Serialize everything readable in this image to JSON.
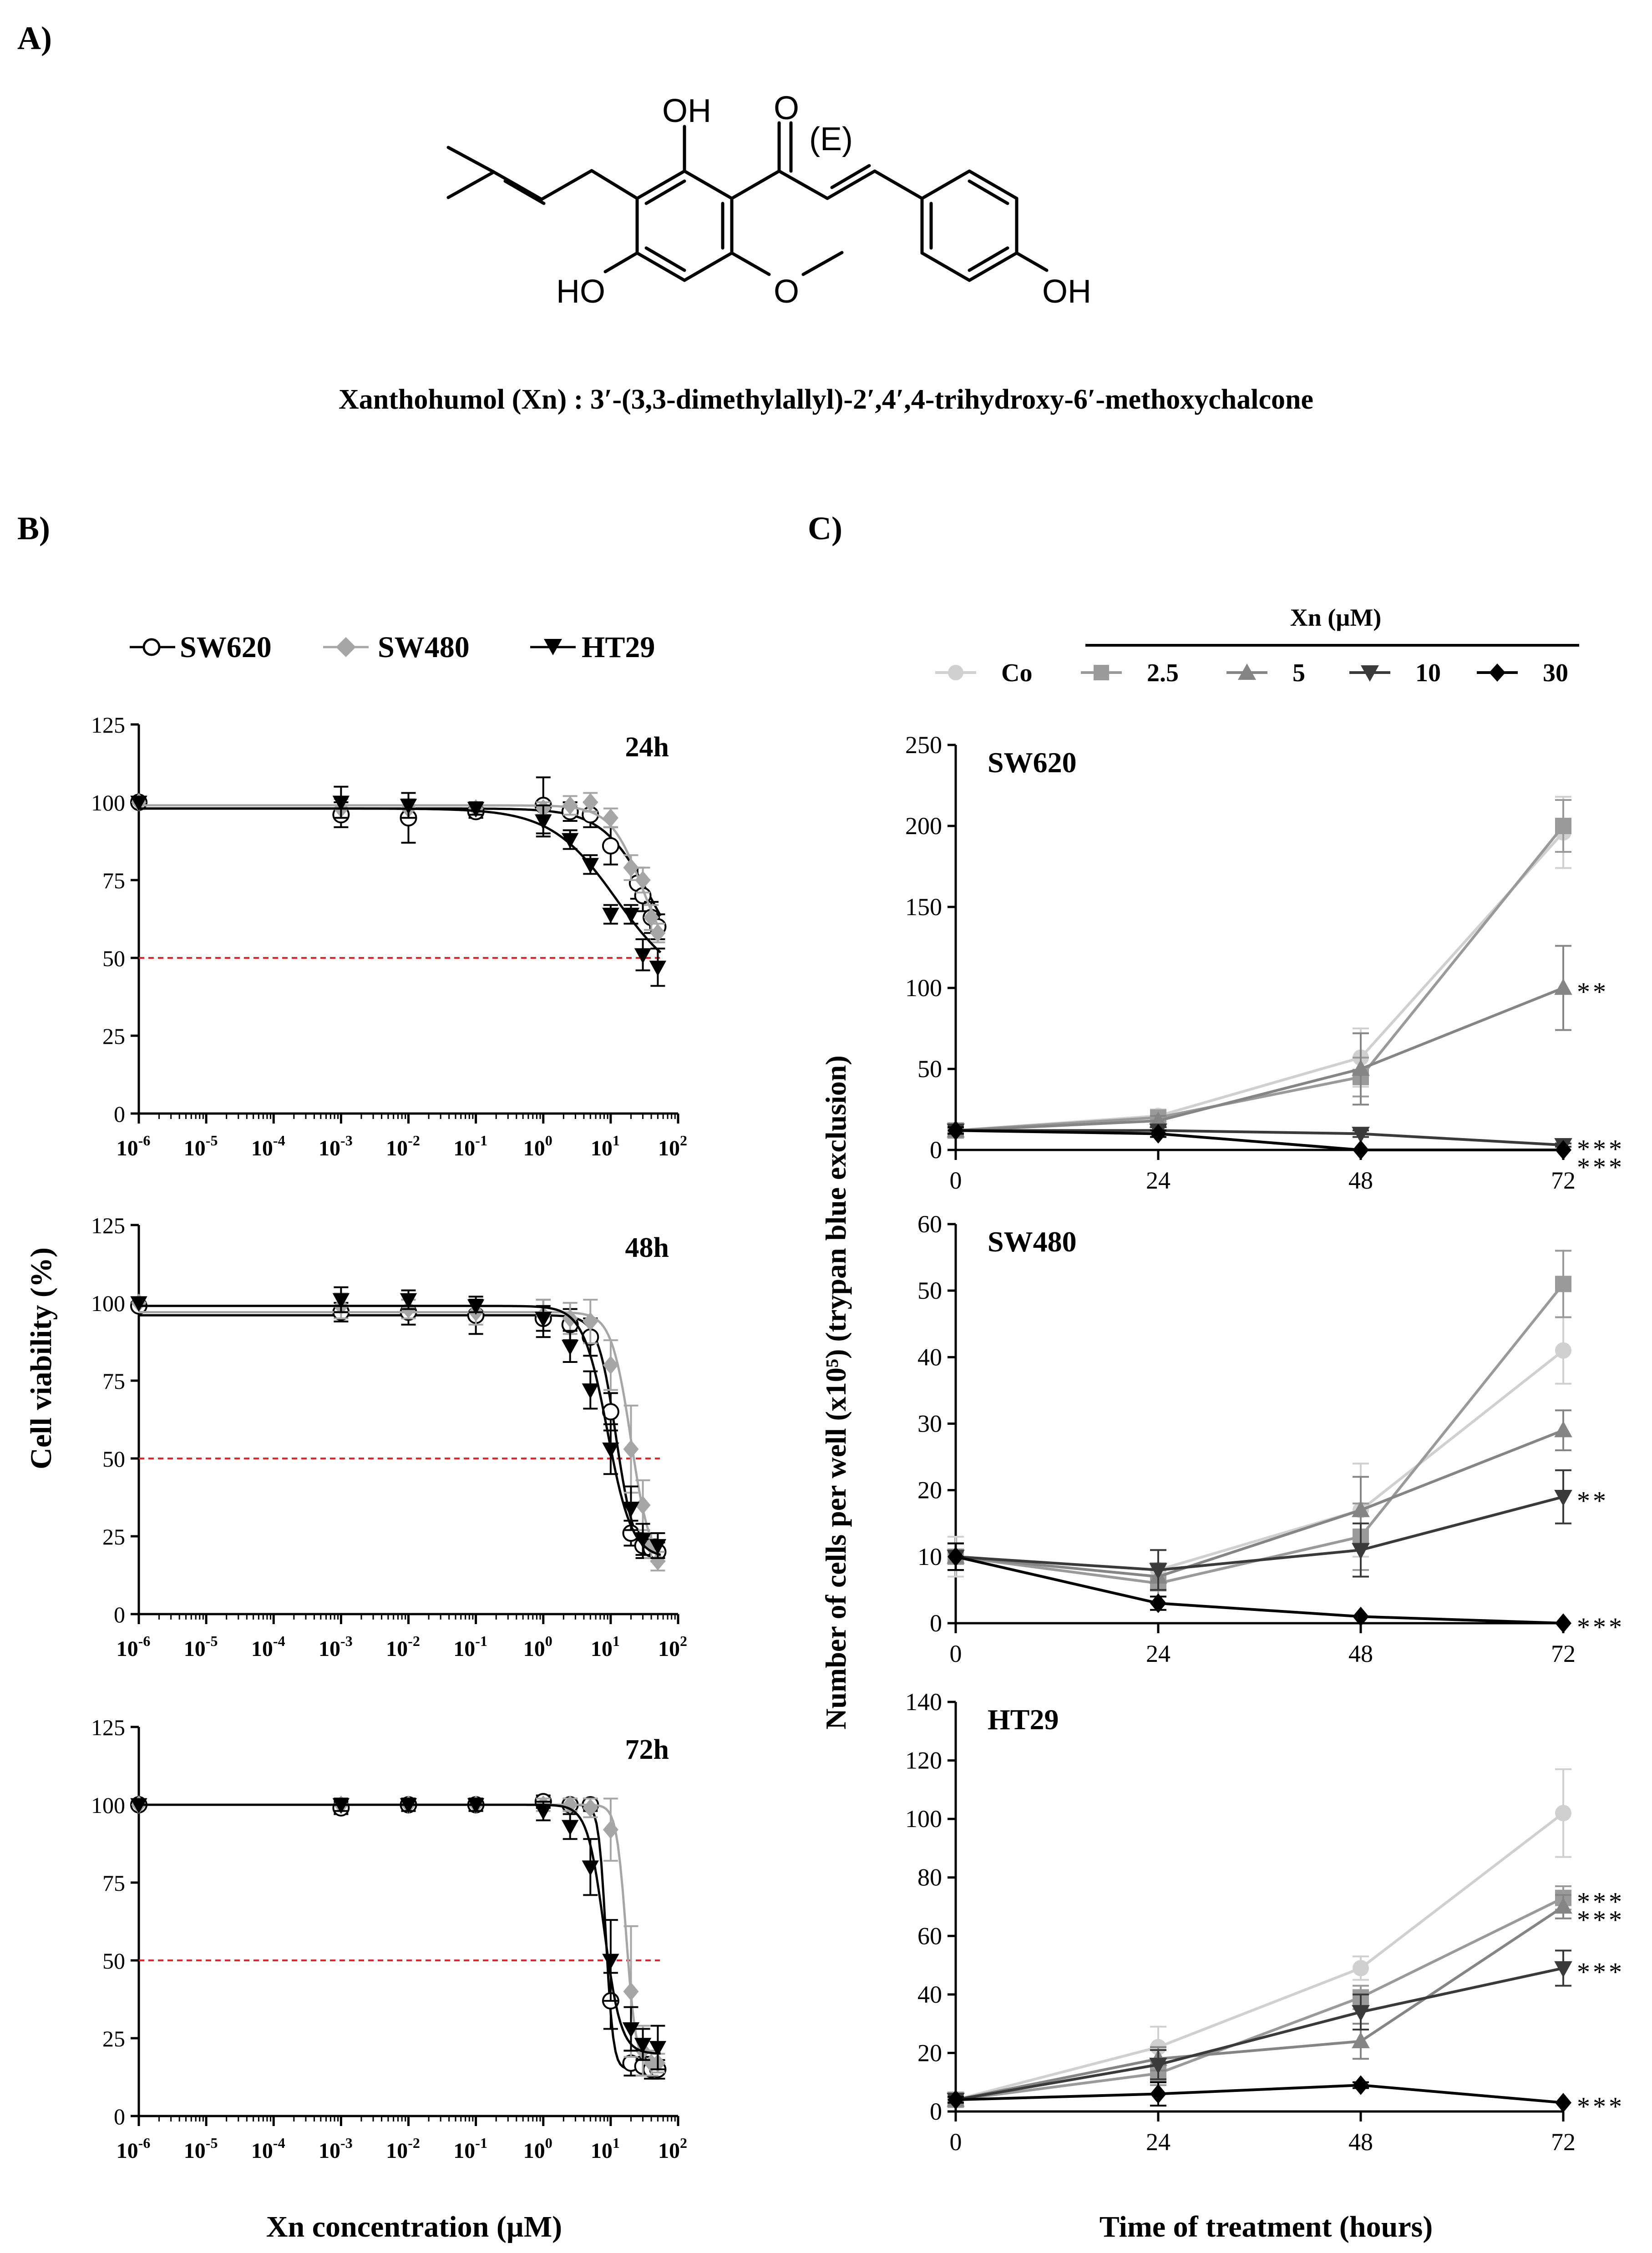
{
  "panels": {
    "a": {
      "label": "A)"
    },
    "b": {
      "label": "B)"
    },
    "c": {
      "label": "C)"
    }
  },
  "molecule": {
    "atoms": {
      "oh_top": "OH",
      "o_keto": "O",
      "stereo": "(E)",
      "ho_left": "HO",
      "o_methoxy": "O",
      "oh_right": "OH"
    },
    "caption": "Xanthohumol (Xn) : 3′-(3,3-dimethylallyl)-2′,4′,4-trihydroxy-6′-methoxychalcone"
  },
  "panel_b": {
    "legend": [
      "SW620",
      "SW480",
      "HT29"
    ],
    "ylabel": "Cell viability (%)",
    "xlabel": "Xn concentration (µM)",
    "yticks": [
      "0",
      "25",
      "50",
      "75",
      "100",
      "125"
    ],
    "xtick_base": "10",
    "xtick_exponents": [
      "-6",
      "-5",
      "-4",
      "-3",
      "-2",
      "-1",
      "0",
      "1",
      "2"
    ]
  },
  "panel_c": {
    "group_label": "Xn (µM)",
    "legend": [
      "Co",
      "2.5",
      "5",
      "10",
      "30"
    ],
    "ylabel": "Number of cells per well (x10⁵) (trypan blue exclusion)",
    "xlabel": "Time of treatment (hours)",
    "xticks": [
      "0",
      "24",
      "48",
      "72"
    ]
  },
  "colors": {
    "SW620": "#000000",
    "SW480": "#a6a6a6",
    "HT29": "#000000",
    "Co": "#d0d0d0",
    "2.5": "#9a9a9a",
    "5": "#858585",
    "10": "#3a3a3a",
    "30": "#000000",
    "threshold": "#e0262a"
  },
  "chart_data": [
    {
      "type": "scatter",
      "title": "24h",
      "xscale": "log",
      "xlim": [
        1e-06,
        100
      ],
      "ylim": [
        0,
        125
      ],
      "xlabel": "Xn concentration (µM)",
      "ylabel": "Cell viability (%)",
      "reference_line": 50,
      "series": [
        {
          "name": "SW620",
          "marker": "circle-open",
          "x": [
            1e-06,
            0.001,
            0.01,
            0.1,
            1,
            2.5,
            5,
            10,
            25,
            30,
            40,
            50
          ],
          "y": [
            100,
            96,
            95,
            97,
            99,
            97,
            96,
            86,
            74,
            70,
            63,
            60
          ],
          "err": [
            0,
            4,
            8,
            2,
            9,
            3,
            4,
            6,
            5,
            5,
            5,
            4
          ],
          "fit": {
            "top": 98,
            "bottom": 40,
            "ic50": 40,
            "hill": 1.2
          }
        },
        {
          "name": "SW480",
          "marker": "diamond",
          "x": [
            1e-06,
            0.001,
            0.01,
            0.1,
            1,
            2.5,
            5,
            10,
            20,
            30,
            40,
            50
          ],
          "y": [
            100,
            98,
            98,
            98,
            98,
            99,
            100,
            95,
            79,
            75,
            63,
            58
          ],
          "err": [
            0,
            3,
            3,
            2,
            2,
            3,
            3,
            3,
            4,
            4,
            4,
            3
          ],
          "fit": {
            "top": 99,
            "bottom": 45,
            "ic50": 30,
            "hill": 1.8
          }
        },
        {
          "name": "HT29",
          "marker": "triangle-down",
          "x": [
            1e-06,
            0.001,
            0.01,
            0.1,
            1,
            2.5,
            5,
            10,
            20,
            30,
            50
          ],
          "y": [
            100,
            100,
            99,
            98,
            94,
            88,
            80,
            64,
            64,
            51,
            47
          ],
          "err": [
            0,
            5,
            4,
            2,
            5,
            3,
            3,
            3,
            3,
            5,
            6
          ],
          "fit": {
            "top": 98,
            "bottom": 40,
            "ic50": 12,
            "hill": 0.9
          }
        }
      ]
    },
    {
      "type": "scatter",
      "title": "48h",
      "xscale": "log",
      "xlim": [
        1e-06,
        100
      ],
      "ylim": [
        0,
        125
      ],
      "xlabel": "Xn concentration (µM)",
      "ylabel": "Cell viability (%)",
      "reference_line": 50,
      "series": [
        {
          "name": "SW620",
          "marker": "circle-open",
          "x": [
            1e-06,
            0.001,
            0.01,
            0.1,
            1,
            2.5,
            5,
            10,
            20,
            30,
            40,
            50
          ],
          "y": [
            99,
            97,
            97,
            96,
            95,
            93,
            89,
            65,
            26,
            22,
            21,
            20
          ],
          "err": [
            0,
            3,
            4,
            6,
            6,
            5,
            6,
            6,
            4,
            4,
            3,
            3
          ],
          "fit": {
            "top": 96,
            "bottom": 18,
            "ic50": 12,
            "hill": 3.2
          }
        },
        {
          "name": "SW480",
          "marker": "diamond",
          "x": [
            1e-06,
            0.001,
            0.01,
            0.1,
            1,
            2.5,
            5,
            10,
            20,
            30,
            40,
            50
          ],
          "y": [
            100,
            99,
            98,
            97,
            96,
            95,
            94,
            80,
            53,
            35,
            22,
            17
          ],
          "err": [
            0,
            4,
            3,
            4,
            5,
            5,
            7,
            8,
            14,
            8,
            4,
            3
          ],
          "fit": {
            "top": 97,
            "bottom": 15,
            "ic50": 20,
            "hill": 3.0
          }
        },
        {
          "name": "HT29",
          "marker": "triangle-down",
          "x": [
            1e-06,
            0.001,
            0.01,
            0.1,
            1,
            2.5,
            5,
            10,
            20,
            30,
            50
          ],
          "y": [
            100,
            101,
            101,
            99,
            95,
            86,
            72,
            53,
            34,
            24,
            22
          ],
          "err": [
            0,
            4,
            3,
            2,
            4,
            5,
            6,
            8,
            7,
            5,
            4
          ],
          "fit": {
            "top": 99,
            "bottom": 18,
            "ic50": 9,
            "hill": 2.4
          }
        }
      ]
    },
    {
      "type": "scatter",
      "title": "72h",
      "xscale": "log",
      "xlim": [
        1e-06,
        100
      ],
      "ylim": [
        0,
        125
      ],
      "xlabel": "Xn concentration (µM)",
      "ylabel": "Cell viability (%)",
      "reference_line": 50,
      "series": [
        {
          "name": "SW620",
          "marker": "circle-open",
          "x": [
            1e-06,
            0.001,
            0.01,
            0.1,
            1,
            2.5,
            5,
            10,
            20,
            30,
            40,
            50
          ],
          "y": [
            100,
            99,
            100,
            100,
            101,
            100,
            100,
            37,
            17,
            16,
            15,
            15
          ],
          "err": [
            0,
            2,
            2,
            2,
            2,
            2,
            2,
            9,
            4,
            3,
            3,
            3
          ],
          "fit": {
            "top": 100,
            "bottom": 15,
            "ic50": 8.5,
            "hill": 8.0
          }
        },
        {
          "name": "SW480",
          "marker": "diamond",
          "x": [
            1e-06,
            0.001,
            0.01,
            0.1,
            1,
            2.5,
            5,
            10,
            20,
            30,
            40,
            50
          ],
          "y": [
            100,
            100,
            100,
            100,
            100,
            100,
            99,
            92,
            40,
            21,
            17,
            17
          ],
          "err": [
            0,
            2,
            2,
            2,
            2,
            2,
            3,
            10,
            21,
            8,
            4,
            3
          ],
          "fit": {
            "top": 100,
            "bottom": 16,
            "ic50": 17,
            "hill": 6.0
          }
        },
        {
          "name": "HT29",
          "marker": "triangle-down",
          "x": [
            1e-06,
            0.001,
            0.01,
            0.1,
            1,
            2.5,
            5,
            10,
            20,
            30,
            50
          ],
          "y": [
            100,
            100,
            100,
            100,
            98,
            93,
            80,
            50,
            28,
            23,
            22
          ],
          "err": [
            0,
            2,
            2,
            2,
            3,
            4,
            9,
            13,
            7,
            5,
            7
          ],
          "fit": {
            "top": 100,
            "bottom": 20,
            "ic50": 8,
            "hill": 3.5
          }
        }
      ]
    },
    {
      "type": "line",
      "title": "SW620",
      "x": [
        0,
        24,
        48,
        72
      ],
      "ylim": [
        0,
        250
      ],
      "yticks": [
        0,
        50,
        100,
        150,
        200,
        250
      ],
      "xlabel": "Time of treatment (hours)",
      "ylabel": "Number of cells per well (x10⁵) (trypan blue exclusion)",
      "series": [
        {
          "name": "Co",
          "marker": "circle",
          "values": [
            12,
            21,
            57,
            196
          ],
          "err": [
            3,
            4,
            18,
            22
          ]
        },
        {
          "name": "2.5",
          "marker": "square",
          "values": [
            12,
            20,
            45,
            200
          ],
          "err": [
            3,
            4,
            12,
            16
          ]
        },
        {
          "name": "5",
          "marker": "triangle-up",
          "values": [
            12,
            18,
            50,
            100
          ],
          "err": [
            3,
            3,
            22,
            26
          ],
          "significance": "**"
        },
        {
          "name": "10",
          "marker": "triangle-down",
          "values": [
            12,
            12,
            10,
            3
          ],
          "err": [
            2,
            2,
            2,
            1
          ],
          "significance": "***"
        },
        {
          "name": "30",
          "marker": "diamond",
          "values": [
            12,
            10,
            0,
            0
          ],
          "err": [
            2,
            2,
            0,
            0
          ],
          "significance": "***"
        }
      ]
    },
    {
      "type": "line",
      "title": "SW480",
      "x": [
        0,
        24,
        48,
        72
      ],
      "ylim": [
        0,
        60
      ],
      "yticks": [
        0,
        10,
        20,
        30,
        40,
        50,
        60
      ],
      "xlabel": "Time of treatment (hours)",
      "ylabel": "Number of cells per well (x10⁵) (trypan blue exclusion)",
      "series": [
        {
          "name": "Co",
          "marker": "circle",
          "values": [
            10,
            8,
            17,
            41
          ],
          "err": [
            3,
            3,
            7,
            5
          ]
        },
        {
          "name": "2.5",
          "marker": "square",
          "values": [
            10,
            6,
            13,
            51
          ],
          "err": [
            2,
            2,
            5,
            5
          ]
        },
        {
          "name": "5",
          "marker": "triangle-up",
          "values": [
            10,
            7,
            17,
            29
          ],
          "err": [
            2,
            2,
            5,
            3
          ]
        },
        {
          "name": "10",
          "marker": "triangle-down",
          "values": [
            10,
            8,
            11,
            19
          ],
          "err": [
            2,
            3,
            4,
            4
          ],
          "significance": "**"
        },
        {
          "name": "30",
          "marker": "diamond",
          "values": [
            10,
            3,
            1,
            0
          ],
          "err": [
            2,
            1,
            0,
            0
          ],
          "significance": "***"
        }
      ]
    },
    {
      "type": "line",
      "title": "HT29",
      "x": [
        0,
        24,
        48,
        72
      ],
      "ylim": [
        0,
        140
      ],
      "yticks": [
        0,
        20,
        40,
        60,
        80,
        100,
        120,
        140
      ],
      "xlabel": "Time of treatment (hours)",
      "ylabel": "Number of cells per well (x10⁵) (trypan blue exclusion)",
      "series": [
        {
          "name": "Co",
          "marker": "circle",
          "values": [
            4,
            22,
            49,
            102
          ],
          "err": [
            1,
            7,
            4,
            15
          ]
        },
        {
          "name": "2.5",
          "marker": "square",
          "values": [
            4,
            13,
            39,
            73
          ],
          "err": [
            1,
            4,
            4,
            4
          ],
          "significance": "***"
        },
        {
          "name": "5",
          "marker": "triangle-up",
          "values": [
            4,
            18,
            24,
            70
          ],
          "err": [
            1,
            4,
            6,
            4
          ],
          "significance": "***"
        },
        {
          "name": "10",
          "marker": "triangle-down",
          "values": [
            4,
            16,
            34,
            49
          ],
          "err": [
            1,
            5,
            6,
            6
          ],
          "significance": "***"
        },
        {
          "name": "30",
          "marker": "diamond",
          "values": [
            4,
            6,
            9,
            3
          ],
          "err": [
            1,
            4,
            1,
            0
          ],
          "significance": "***"
        }
      ]
    }
  ]
}
